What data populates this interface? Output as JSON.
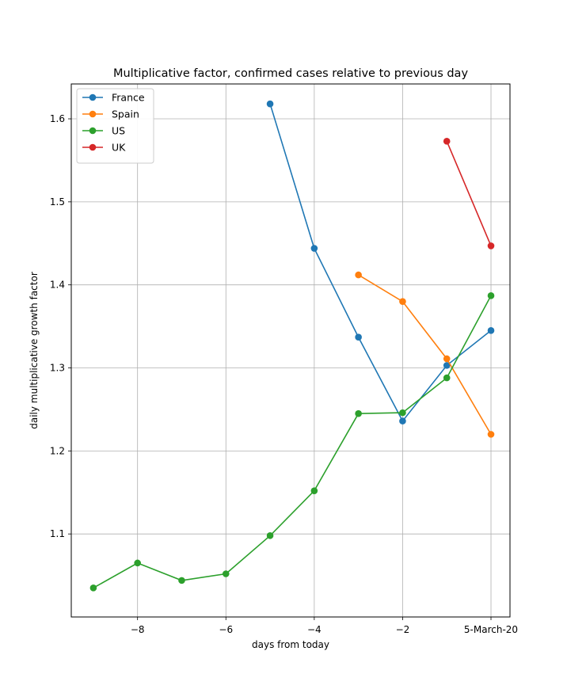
{
  "chart_data": {
    "type": "line",
    "title": "Multiplicative factor, confirmed cases relative to previous day",
    "xlabel": "days from today",
    "ylabel": "daily multiplicative growth factor",
    "xlim": [
      -9.5,
      0.43
    ],
    "ylim": [
      1.0,
      1.642
    ],
    "grid": true,
    "legend_position": "top-left",
    "x_ticks": [
      {
        "value": -8,
        "label": "−8"
      },
      {
        "value": -6,
        "label": "−6"
      },
      {
        "value": -4,
        "label": "−4"
      },
      {
        "value": -2,
        "label": "−2"
      },
      {
        "value": 0,
        "label": "5-March-20"
      }
    ],
    "y_ticks": [
      {
        "value": 1.1,
        "label": "1.1"
      },
      {
        "value": 1.2,
        "label": "1.2"
      },
      {
        "value": 1.3,
        "label": "1.3"
      },
      {
        "value": 1.4,
        "label": "1.4"
      },
      {
        "value": 1.5,
        "label": "1.5"
      },
      {
        "value": 1.6,
        "label": "1.6"
      }
    ],
    "series": [
      {
        "name": "France",
        "color": "#1f77b4",
        "x": [
          -5,
          -4,
          -3,
          -2,
          -1,
          0
        ],
        "values": [
          1.618,
          1.444,
          1.337,
          1.236,
          1.303,
          1.345
        ]
      },
      {
        "name": "Spain",
        "color": "#ff7f0e",
        "x": [
          -3,
          -2,
          -1,
          0
        ],
        "values": [
          1.412,
          1.38,
          1.311,
          1.22
        ]
      },
      {
        "name": "US",
        "color": "#2ca02c",
        "x": [
          -9,
          -8,
          -7,
          -6,
          -5,
          -4,
          -3,
          -2,
          -1,
          0
        ],
        "values": [
          1.035,
          1.065,
          1.044,
          1.052,
          1.098,
          1.152,
          1.245,
          1.246,
          1.288,
          1.387
        ]
      },
      {
        "name": "UK",
        "color": "#d62728",
        "x": [
          -1,
          0
        ],
        "values": [
          1.573,
          1.447
        ]
      }
    ]
  }
}
